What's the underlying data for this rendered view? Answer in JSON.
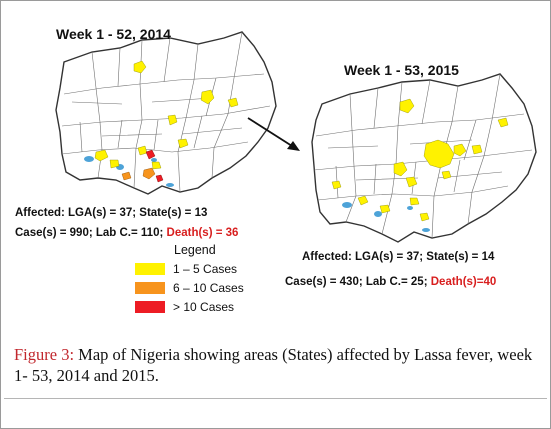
{
  "map_2014": {
    "title": "Week 1 - 52, 2014",
    "affected": "Affected: LGA(s) = 37;  State(s) = 13",
    "cases": "Case(s) = 990;  Lab C.= 110;",
    "deaths": "Death(s) = 36"
  },
  "map_2015": {
    "title": "Week 1 - 53, 2015",
    "affected": "Affected: LGA(s) = 37;  State(s) = 14",
    "cases": "Case(s) = 430; Lab C.= 25;",
    "deaths": "Death(s)=40"
  },
  "legend": {
    "title": "Legend",
    "items": [
      {
        "label": "1 – 5 Cases",
        "color": "#fff200"
      },
      {
        "label": "6 – 10 Cases",
        "color": "#f7941d"
      },
      {
        "label": "> 10 Cases",
        "color": "#ed1c24"
      }
    ]
  },
  "caption": {
    "label": "Figure 3:",
    "text": " Map of Nigeria showing areas (States) affected by Lassa fever, week 1- 53, 2014 and 2015."
  },
  "colors": {
    "outline": "#333333",
    "internal_border": "#6f6f6f",
    "water": "#4da3d8",
    "death_text": "#d81e1e",
    "caption_label": "#c1272d"
  }
}
